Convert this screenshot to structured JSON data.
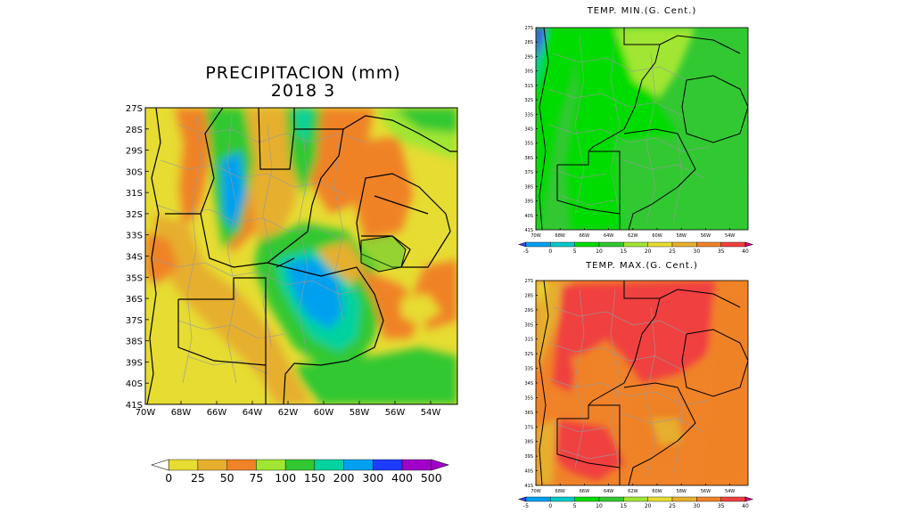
{
  "precip": {
    "title_line1": "PRECIPITACION (mm)",
    "title_line2": "2018  3",
    "lat_labels": [
      "27S",
      "28S",
      "29S",
      "30S",
      "31S",
      "32S",
      "33S",
      "34S",
      "35S",
      "36S",
      "37S",
      "38S",
      "39S",
      "40S",
      "41S"
    ],
    "lon_labels": [
      "70W",
      "68W",
      "66W",
      "64W",
      "62W",
      "60W",
      "58W",
      "56W",
      "54W"
    ],
    "colorbar_values": [
      "0",
      "25",
      "50",
      "75",
      "100",
      "150",
      "200",
      "300",
      "400",
      "500"
    ],
    "colorbar_colors": [
      "#e6dc32",
      "#e6af2d",
      "#f08228",
      "#a0e632",
      "#32c832",
      "#00d2a0",
      "#00a0f0",
      "#1e3cff",
      "#a000c8"
    ],
    "under_color": "#ffffff",
    "over_color": "#a000c8"
  },
  "tmin": {
    "title": "TEMP. MIN.(G. Cent.)",
    "lat_labels": [
      "27S",
      "28S",
      "29S",
      "30S",
      "31S",
      "32S",
      "33S",
      "34S",
      "35S",
      "36S",
      "37S",
      "38S",
      "39S",
      "40S",
      "41S"
    ],
    "lon_labels": [
      "70W",
      "68W",
      "66W",
      "64W",
      "62W",
      "60W",
      "58W",
      "56W",
      "54W"
    ],
    "colorbar_values": [
      "-5",
      "0",
      "5",
      "10",
      "15",
      "20",
      "25",
      "30",
      "35",
      "40"
    ],
    "colorbar_colors": [
      "#00a0f0",
      "#00c8c8",
      "#00dc00",
      "#32c832",
      "#a0e632",
      "#e6dc32",
      "#e6af2d",
      "#f08228",
      "#f04040"
    ],
    "under_color": "#3c3cff",
    "over_color": "#f00082"
  },
  "tmax": {
    "title": "TEMP. MAX.(G. Cent.)",
    "lat_labels": [
      "27S",
      "28S",
      "29S",
      "30S",
      "31S",
      "32S",
      "33S",
      "34S",
      "35S",
      "36S",
      "37S",
      "38S",
      "39S",
      "40S",
      "41S"
    ],
    "lon_labels": [
      "70W",
      "68W",
      "66W",
      "64W",
      "62W",
      "60W",
      "58W",
      "56W",
      "54W"
    ],
    "colorbar_values": [
      "-5",
      "0",
      "5",
      "10",
      "15",
      "20",
      "25",
      "30",
      "35",
      "40"
    ],
    "colorbar_colors": [
      "#00a0f0",
      "#00c8c8",
      "#00dc00",
      "#32c832",
      "#a0e632",
      "#e6dc32",
      "#e6af2d",
      "#f08228",
      "#f04040"
    ],
    "under_color": "#3c3cff",
    "over_color": "#f00082"
  }
}
